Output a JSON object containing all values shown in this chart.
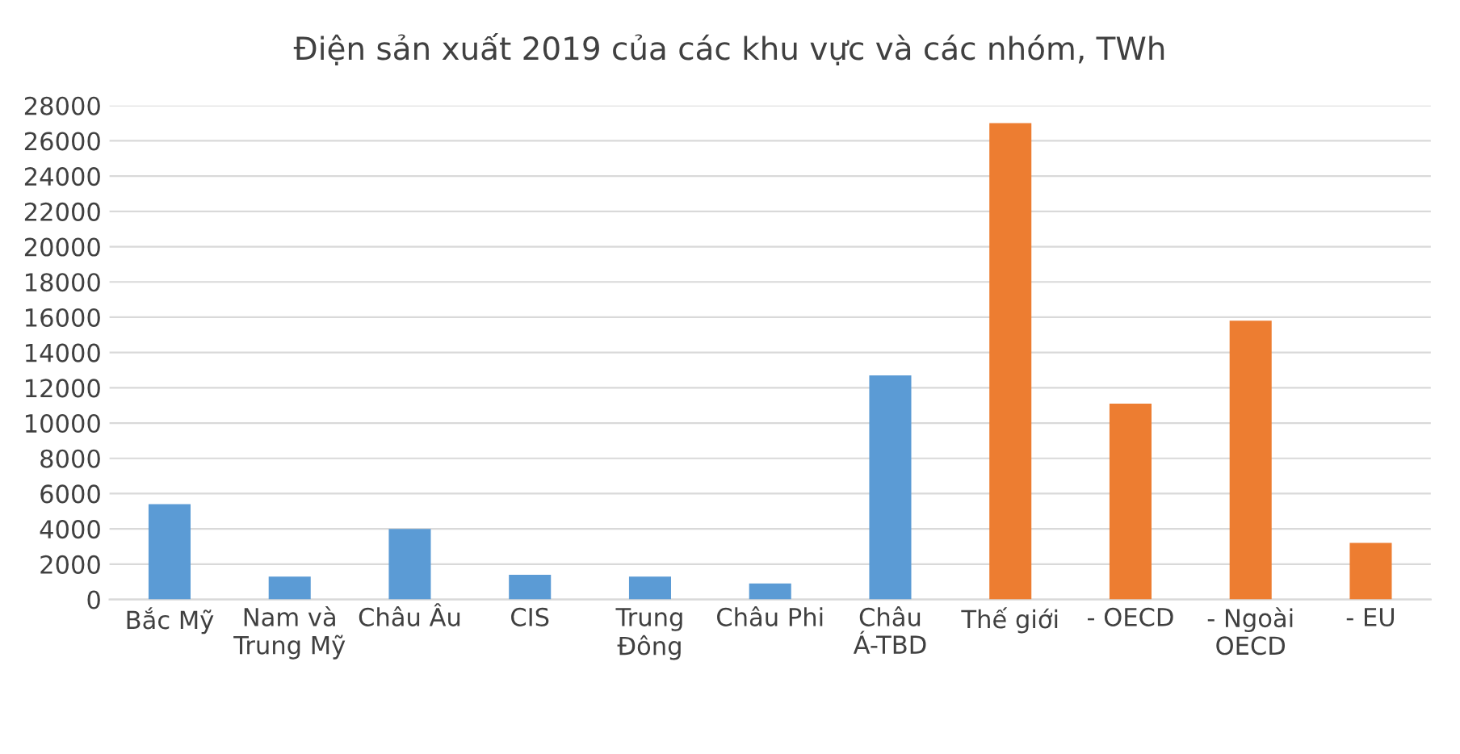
{
  "chart_data": {
    "type": "bar",
    "title": "Điện sản xuất 2019 của các khu vực và các nhóm, TWh",
    "categories": [
      "Bắc Mỹ",
      "Nam và Trung Mỹ",
      "Châu Âu",
      "CIS",
      "Trung Đông",
      "Châu Phi",
      "Châu Á-TBD",
      "Thế giới",
      "- OECD",
      "- Ngoài OECD",
      "- EU"
    ],
    "values": [
      5400,
      1300,
      4000,
      1400,
      1300,
      900,
      12700,
      27000,
      11100,
      15800,
      3200
    ],
    "colors": [
      "#5b9bd5",
      "#5b9bd5",
      "#5b9bd5",
      "#5b9bd5",
      "#5b9bd5",
      "#5b9bd5",
      "#5b9bd5",
      "#ed7d31",
      "#ed7d31",
      "#ed7d31",
      "#ed7d31"
    ],
    "ylim": [
      0,
      28000
    ],
    "yticks": [
      0,
      2000,
      4000,
      6000,
      8000,
      10000,
      12000,
      14000,
      16000,
      18000,
      20000,
      22000,
      24000,
      26000,
      28000
    ],
    "grid": "y"
  }
}
